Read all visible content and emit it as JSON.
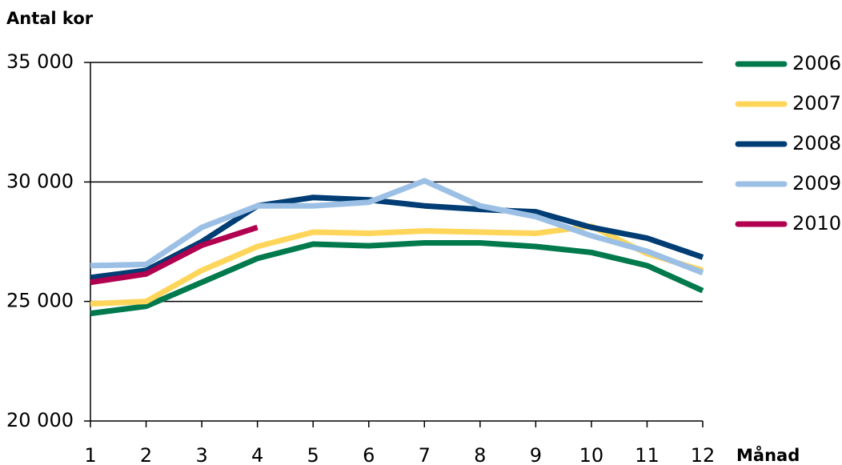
{
  "chart_data": {
    "type": "line",
    "y_axis_label": "Antal kor",
    "x_axis_label": "Månad",
    "x": [
      1,
      2,
      3,
      4,
      5,
      6,
      7,
      8,
      9,
      10,
      11,
      12
    ],
    "xlim": [
      1,
      12
    ],
    "xticks": [
      1,
      2,
      3,
      4,
      5,
      6,
      7,
      8,
      9,
      10,
      11,
      12
    ],
    "ylim": [
      20000,
      35000
    ],
    "yticks": [
      {
        "value": 20000,
        "label": "20 000"
      },
      {
        "value": 25000,
        "label": "25 000"
      },
      {
        "value": 30000,
        "label": "30 000"
      },
      {
        "value": 35000,
        "label": "35 000"
      }
    ],
    "grid": true,
    "legend": "right",
    "series": [
      {
        "name": "2006",
        "color": "#007a4d",
        "values": [
          24500,
          24800,
          25800,
          26800,
          27400,
          27330,
          27450,
          27450,
          27300,
          27050,
          26500,
          25450
        ]
      },
      {
        "name": "2007",
        "color": "#ffd55a",
        "values": [
          24900,
          25000,
          26300,
          27300,
          27900,
          27850,
          27950,
          27900,
          27850,
          28150,
          27000,
          26300
        ]
      },
      {
        "name": "2008",
        "color": "#003d74",
        "values": [
          26000,
          26300,
          27500,
          29000,
          29350,
          29250,
          29000,
          28850,
          28750,
          28100,
          27650,
          26850
        ]
      },
      {
        "name": "2009",
        "color": "#9cc0e5",
        "values": [
          26500,
          26550,
          28100,
          29000,
          29000,
          29150,
          30050,
          29000,
          28550,
          27750,
          27100,
          26200
        ]
      },
      {
        "name": "2010",
        "color": "#b0004f",
        "values": [
          25800,
          26150,
          27350,
          28100,
          null,
          null,
          null,
          null,
          null,
          null,
          null,
          null
        ]
      }
    ]
  }
}
